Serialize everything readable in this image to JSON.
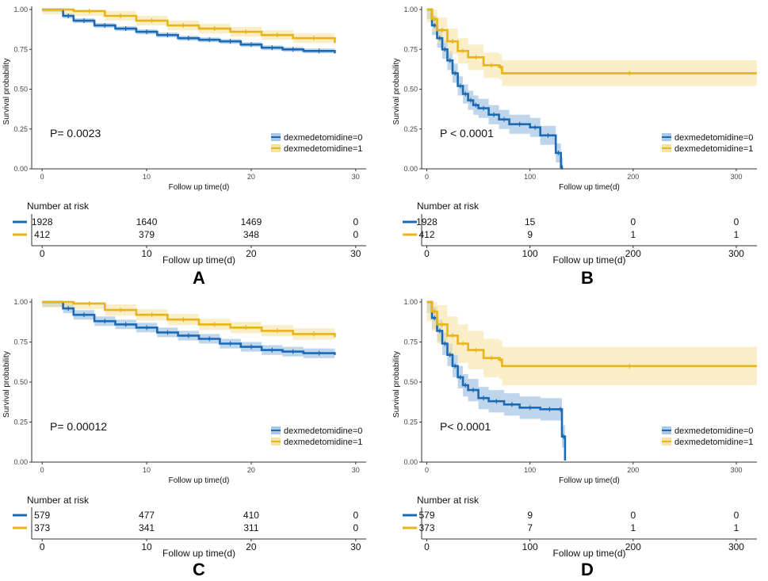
{
  "colors": {
    "group0": "#1B6AB3",
    "group1": "#E8B417",
    "ci0": "#A9C7E6",
    "ci1": "#F5E3A3",
    "axis": "#333333",
    "text": "#111111"
  },
  "chart_data": [
    {
      "type": "line",
      "panel_label": "A",
      "title": "",
      "ylabel": "Survival probability",
      "xlabel": "Follow up time(d)",
      "xlim": [
        -1,
        31
      ],
      "ylim": [
        0,
        1
      ],
      "xticks": [
        0,
        10,
        20,
        30
      ],
      "yticks": [
        0.0,
        0.25,
        0.5,
        0.75,
        1.0
      ],
      "ytick_labels": [
        "0.00",
        "0.25",
        "0.50",
        "0.75",
        "1.00"
      ],
      "pvalue": "P= 0.0023",
      "legend": [
        "dexmedetomidine=0",
        "dexmedetomidine=1"
      ],
      "legend_position": "bottom-right",
      "series": [
        {
          "name": "dexmedetomidine=0",
          "x": [
            0,
            2,
            3,
            5,
            7,
            9,
            11,
            13,
            15,
            17,
            19,
            21,
            23,
            25,
            28
          ],
          "y": [
            1.0,
            0.96,
            0.93,
            0.9,
            0.88,
            0.86,
            0.84,
            0.82,
            0.81,
            0.8,
            0.78,
            0.76,
            0.75,
            0.74,
            0.725
          ],
          "ci": 0.015
        },
        {
          "name": "dexmedetomidine=1",
          "x": [
            0,
            3,
            6,
            9,
            12,
            15,
            18,
            21,
            24,
            28
          ],
          "y": [
            1.0,
            0.99,
            0.96,
            0.93,
            0.9,
            0.88,
            0.86,
            0.84,
            0.82,
            0.79
          ],
          "ci": 0.03
        }
      ],
      "risk_table": {
        "title": "Number at risk",
        "times": [
          "0",
          "10",
          "20",
          "30"
        ],
        "rows": [
          [
            "1928",
            "1640",
            "1469",
            "0"
          ],
          [
            "412",
            "379",
            "348",
            "0"
          ]
        ]
      }
    },
    {
      "type": "line",
      "panel_label": "B",
      "title": "",
      "ylabel": "Survival probability",
      "xlabel": "Follow up time(d)",
      "xlim": [
        -5,
        320
      ],
      "ylim": [
        0,
        1
      ],
      "xticks": [
        0,
        100,
        200,
        300
      ],
      "yticks": [
        0.0,
        0.25,
        0.5,
        0.75,
        1.0
      ],
      "ytick_labels": [
        "0.00",
        "0.25",
        "0.50",
        "0.75",
        "1.00"
      ],
      "pvalue": "P < 0.0001",
      "legend": [
        "dexmedetomidine=0",
        "dexmedetomidine=1"
      ],
      "legend_position": "bottom-right",
      "series": [
        {
          "name": "dexmedetomidine=0",
          "x": [
            0,
            5,
            10,
            15,
            20,
            25,
            30,
            35,
            40,
            45,
            50,
            60,
            70,
            80,
            100,
            110,
            125,
            130,
            132
          ],
          "y": [
            1.0,
            0.9,
            0.82,
            0.75,
            0.68,
            0.6,
            0.52,
            0.47,
            0.43,
            0.4,
            0.38,
            0.34,
            0.31,
            0.28,
            0.26,
            0.21,
            0.1,
            0.01,
            0.01
          ],
          "ci": 0.06
        },
        {
          "name": "dexmedetomidine=1",
          "x": [
            0,
            5,
            10,
            20,
            30,
            40,
            55,
            70,
            73,
            320
          ],
          "y": [
            1.0,
            0.94,
            0.87,
            0.8,
            0.74,
            0.7,
            0.65,
            0.64,
            0.6,
            0.6
          ],
          "ci": 0.08
        }
      ],
      "risk_table": {
        "title": "Number at risk",
        "times": [
          "0",
          "100",
          "200",
          "300"
        ],
        "rows": [
          [
            "1928",
            "15",
            "0",
            "0"
          ],
          [
            "412",
            "9",
            "1",
            "1"
          ]
        ]
      }
    },
    {
      "type": "line",
      "panel_label": "C",
      "title": "",
      "ylabel": "Survival probability",
      "xlabel": "Follow up time(d)",
      "xlim": [
        -1,
        31
      ],
      "ylim": [
        0,
        1
      ],
      "xticks": [
        0,
        10,
        20,
        30
      ],
      "yticks": [
        0.0,
        0.25,
        0.5,
        0.75,
        1.0
      ],
      "ytick_labels": [
        "0.00",
        "0.25",
        "0.50",
        "0.75",
        "1.00"
      ],
      "pvalue": "P= 0.00012",
      "legend": [
        "dexmedetomidine=0",
        "dexmedetomidine=1"
      ],
      "legend_position": "bottom-right",
      "series": [
        {
          "name": "dexmedetomidine=0",
          "x": [
            0,
            2,
            3,
            5,
            7,
            9,
            11,
            13,
            15,
            17,
            19,
            21,
            23,
            25,
            28
          ],
          "y": [
            1.0,
            0.96,
            0.92,
            0.88,
            0.86,
            0.84,
            0.81,
            0.79,
            0.77,
            0.74,
            0.72,
            0.7,
            0.69,
            0.68,
            0.67
          ],
          "ci": 0.03
        },
        {
          "name": "dexmedetomidine=1",
          "x": [
            0,
            3,
            6,
            9,
            12,
            15,
            18,
            21,
            24,
            28
          ],
          "y": [
            1.0,
            0.99,
            0.95,
            0.92,
            0.89,
            0.86,
            0.84,
            0.82,
            0.8,
            0.78
          ],
          "ci": 0.035
        }
      ],
      "risk_table": {
        "title": "Number at risk",
        "times": [
          "0",
          "10",
          "20",
          "30"
        ],
        "rows": [
          [
            "579",
            "477",
            "410",
            "0"
          ],
          [
            "373",
            "341",
            "311",
            "0"
          ]
        ]
      }
    },
    {
      "type": "line",
      "panel_label": "D",
      "title": "",
      "ylabel": "Survival probability",
      "xlabel": "Follow up time(d)",
      "xlim": [
        -5,
        320
      ],
      "ylim": [
        0,
        1
      ],
      "xticks": [
        0,
        100,
        200,
        300
      ],
      "yticks": [
        0.0,
        0.25,
        0.5,
        0.75,
        1.0
      ],
      "ytick_labels": [
        "0.00",
        "0.25",
        "0.50",
        "0.75",
        "1.00"
      ],
      "pvalue": "P< 0.0001",
      "legend": [
        "dexmedetomidine=0",
        "dexmedetomidine=1"
      ],
      "legend_position": "bottom-right",
      "series": [
        {
          "name": "dexmedetomidine=0",
          "x": [
            0,
            5,
            10,
            15,
            20,
            25,
            30,
            35,
            40,
            50,
            60,
            75,
            90,
            110,
            128,
            131,
            134
          ],
          "y": [
            1.0,
            0.9,
            0.82,
            0.74,
            0.67,
            0.6,
            0.53,
            0.48,
            0.45,
            0.4,
            0.38,
            0.36,
            0.34,
            0.33,
            0.33,
            0.16,
            0.01
          ],
          "ci": 0.07
        },
        {
          "name": "dexmedetomidine=1",
          "x": [
            0,
            5,
            10,
            20,
            30,
            40,
            55,
            70,
            73,
            320
          ],
          "y": [
            1.0,
            0.94,
            0.86,
            0.79,
            0.74,
            0.7,
            0.65,
            0.64,
            0.6,
            0.6
          ],
          "ci": 0.12
        }
      ],
      "risk_table": {
        "title": "Number at risk",
        "times": [
          "0",
          "100",
          "200",
          "300"
        ],
        "rows": [
          [
            "579",
            "9",
            "0",
            "0"
          ],
          [
            "373",
            "7",
            "1",
            "1"
          ]
        ]
      }
    }
  ]
}
